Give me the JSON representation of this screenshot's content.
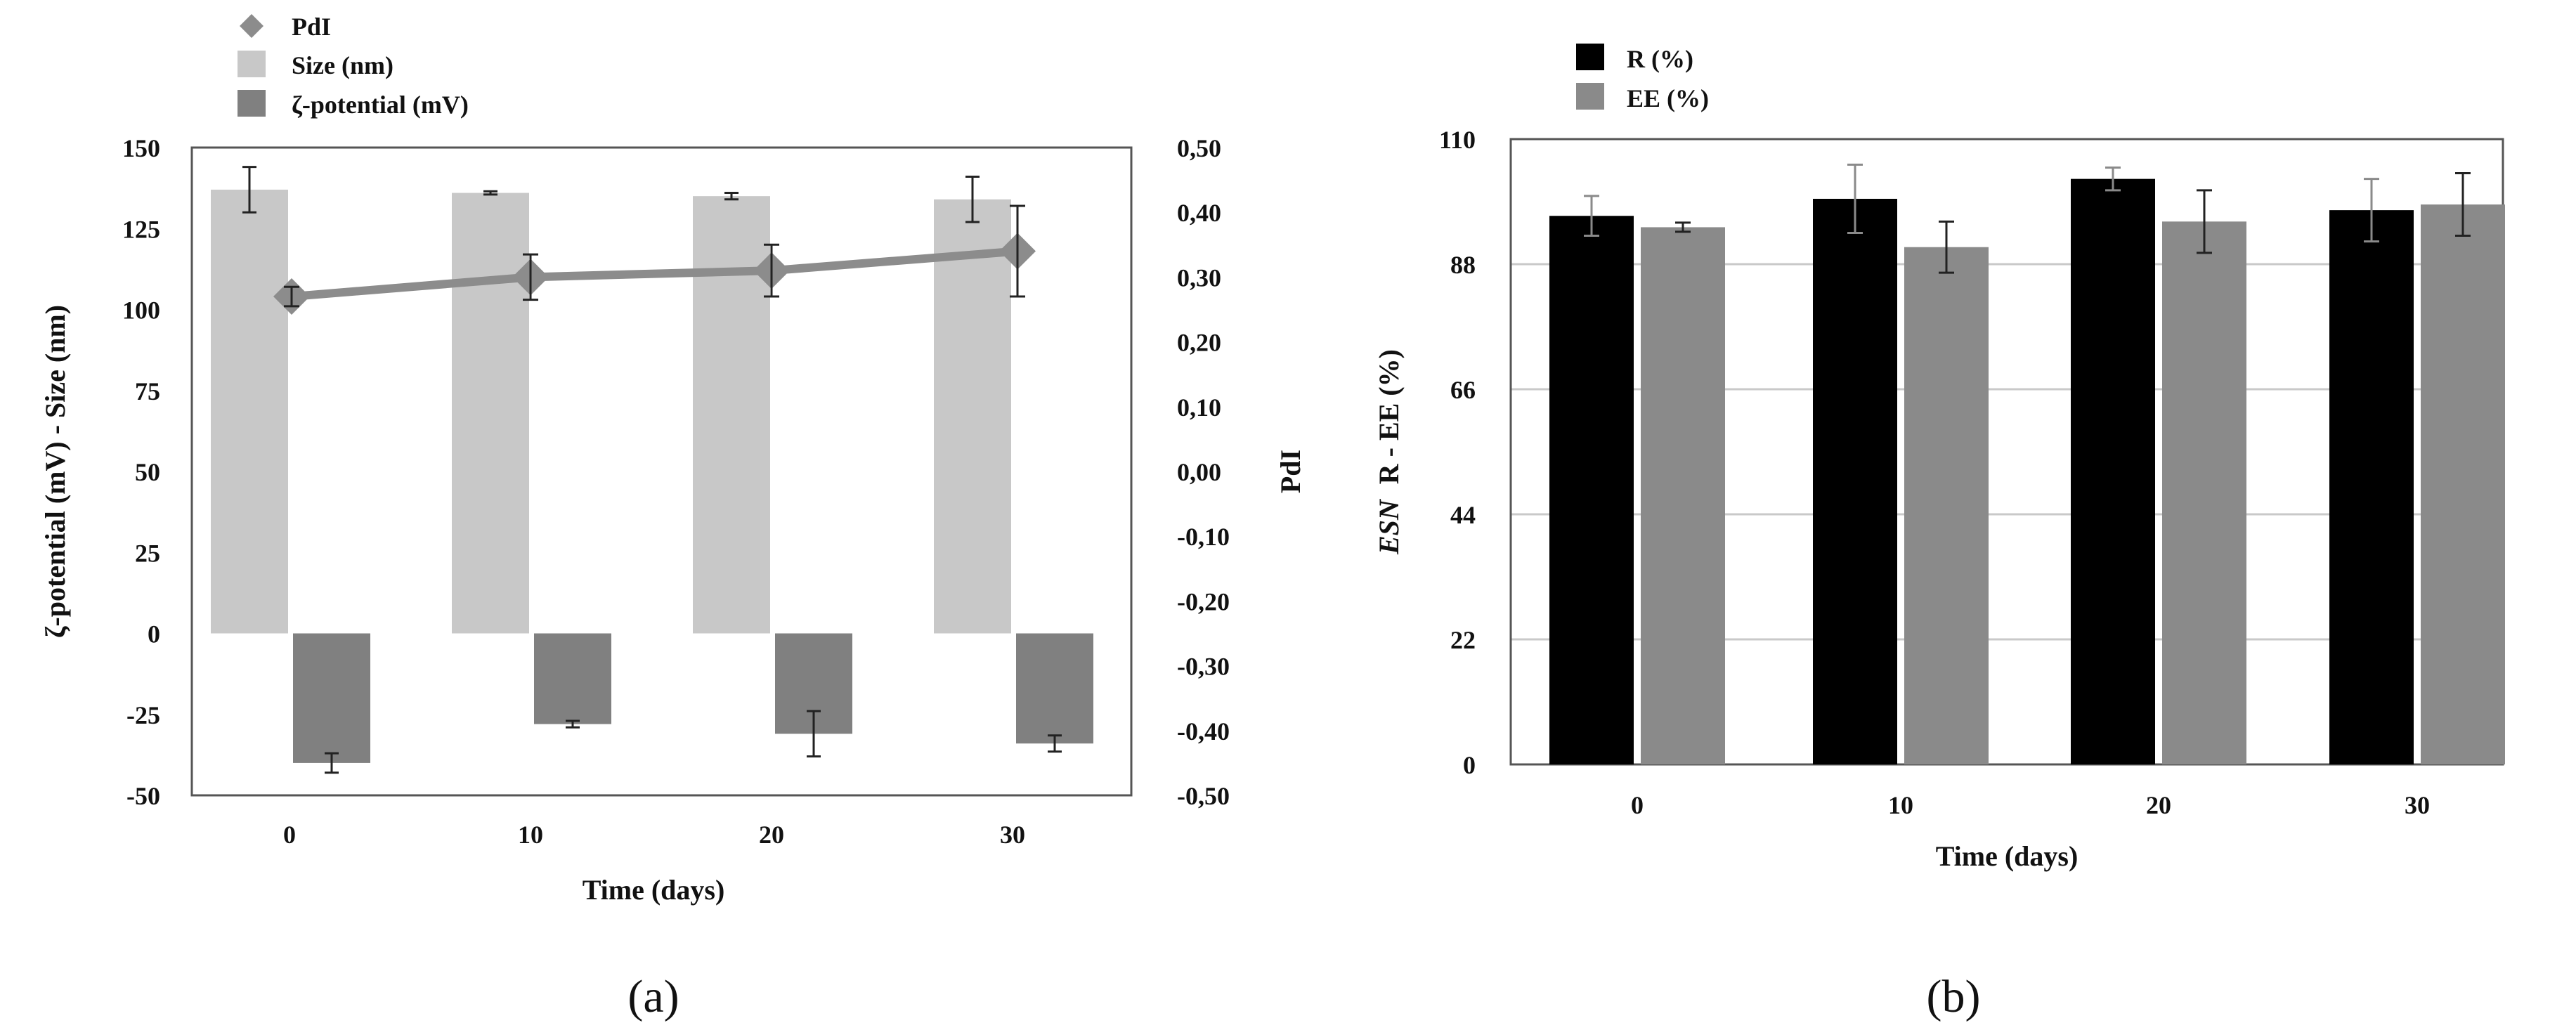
{
  "colors": {
    "size_bar": "#c8c8c8",
    "zeta_bar": "#808080",
    "pdi_line": "#8c8c8c",
    "r_bar": "#000000",
    "ee_bar": "#8a8a8a",
    "gridline": "#c9c9c9",
    "error_bar": "#222222"
  },
  "chart_data": [
    {
      "type": "bar",
      "panel_label": "(a)",
      "xlabel": "Time (days)",
      "ylabel": "ζ-potential (mV) - Size (nm)",
      "y2label": "PdI",
      "categories": [
        "0",
        "10",
        "20",
        "30"
      ],
      "ylim": [
        -50,
        150
      ],
      "yticks": [
        "150",
        "125",
        "100",
        "75",
        "50",
        "25",
        "0",
        "-25",
        "-50"
      ],
      "y2lim": [
        -0.5,
        0.5
      ],
      "y2ticks": [
        "0,50",
        "0,40",
        "0,30",
        "0,20",
        "0,10",
        "0,00",
        "-0,10",
        "-0,20",
        "-0,30",
        "-0,40",
        "-0,50"
      ],
      "legend_position": "top-left",
      "series": [
        {
          "name": "PdI",
          "kind": "line",
          "axis": "right",
          "values": [
            0.27,
            0.3,
            0.31,
            0.34
          ],
          "errors": [
            0.015,
            0.035,
            0.04,
            0.07
          ]
        },
        {
          "name": "Size (nm)",
          "kind": "bar",
          "axis": "left",
          "values": [
            137,
            136,
            135,
            134
          ],
          "errors": [
            7,
            0.5,
            1,
            7
          ]
        },
        {
          "name": "ζ-potential (mV)",
          "kind": "bar",
          "axis": "left",
          "values": [
            -40,
            -28,
            -31,
            -34
          ],
          "errors": [
            3,
            1,
            7,
            2.5
          ]
        }
      ]
    },
    {
      "type": "bar",
      "panel_label": "(b)",
      "xlabel": "Time (days)",
      "ylabel": "R - EE (%)",
      "ylabel_prefix": "ESN",
      "categories": [
        "0",
        "10",
        "20",
        "30"
      ],
      "ylim": [
        0,
        110
      ],
      "yticks": [
        "110",
        "88",
        "66",
        "44",
        "22",
        "0"
      ],
      "grid": true,
      "legend_position": "top-left",
      "series": [
        {
          "name": "R (%)",
          "values": [
            96.5,
            99.5,
            103,
            97.5
          ],
          "errors": [
            3.5,
            6,
            2,
            5.5
          ]
        },
        {
          "name": "EE (%)",
          "values": [
            94.5,
            91,
            95.5,
            98.5
          ],
          "errors": [
            0.8,
            4.5,
            5.5,
            5.5
          ]
        }
      ]
    }
  ]
}
